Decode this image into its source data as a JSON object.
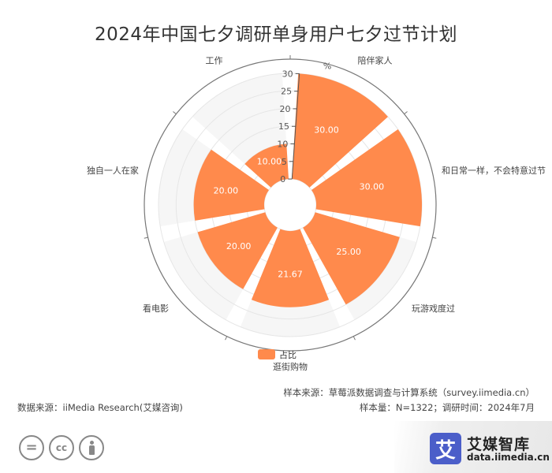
{
  "chart_data": {
    "type": "bar",
    "layout": "polar",
    "title": "2024年中国七夕调研单身用户七夕过节计划",
    "unit": "%",
    "categories": [
      "陪伴家人",
      "和日常一样，不会特意过节",
      "玩游戏度过",
      "逛街购物",
      "看电影",
      "独自一人在家",
      "工作"
    ],
    "series": [
      {
        "name": "占比",
        "values": [
          30.0,
          30.0,
          25.0,
          21.67,
          20.0,
          20.0,
          10.0
        ]
      }
    ],
    "data_labels": [
      "30.00",
      "30.00",
      "25.00",
      "21.67",
      "20.00",
      "20.00",
      "10.00"
    ],
    "radial_ticks": [
      "0",
      "5",
      "10",
      "15",
      "20",
      "25",
      "30"
    ],
    "rlim": [
      0,
      30
    ],
    "legend_position": "bottom-center",
    "colors": {
      "bar": "#ff8a4c",
      "text": "#333333"
    }
  },
  "footer": {
    "sample_source": "样本来源：草莓派数据调查与计算系统（survey.iimedia.cn）",
    "data_source": "数据来源：iiMedia Research(艾媒咨询)",
    "sample_info": "样本量：N=1322；调研时间：2024年7月"
  },
  "license_icons": [
    "equals-icon",
    "cc-icon",
    "person-icon"
  ],
  "cc_text": "cc",
  "brand": {
    "logo_char": "艾",
    "name": "艾媒智库",
    "url": "data.iimedia.cn",
    "color": "#4b5ec9"
  }
}
